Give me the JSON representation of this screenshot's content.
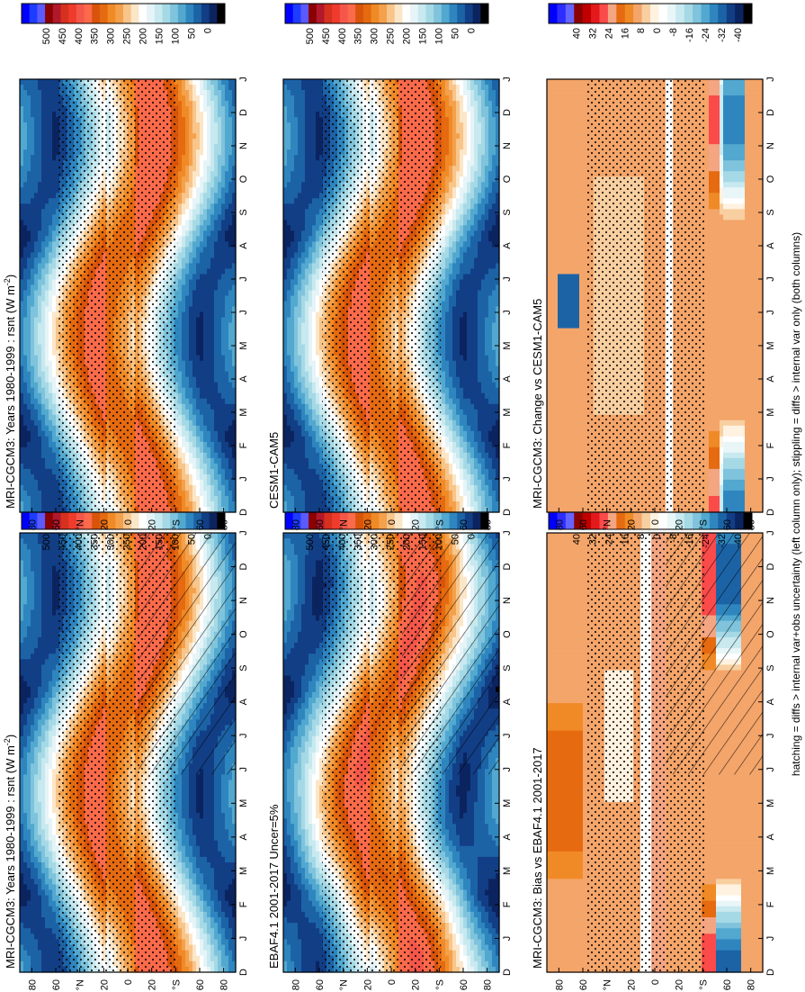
{
  "figure": {
    "caption": "hatching = diffs > internal var+obs uncertainty (left column only); stippling = diffs > internal var only (both columns)"
  },
  "chart_data": [
    {
      "type": "heatmap",
      "panel": "top-left",
      "title": "MRI-CGCM3: Years 1980-1999 : rsnt (W m",
      "title_superscript": "-2",
      "title_suffix": ")",
      "x_tick_labels": [
        "D",
        "J",
        "F",
        "M",
        "A",
        "M",
        "J",
        "J",
        "A",
        "S",
        "O",
        "N",
        "D",
        "J"
      ],
      "y_tick_labels": [
        "80",
        "60",
        "°N",
        "20",
        "0",
        "20",
        "°S",
        "60",
        "80"
      ],
      "y_ticks": [
        80,
        60,
        40,
        20,
        0,
        -20,
        -40,
        -60,
        -80
      ],
      "ylim": [
        -90,
        90
      ],
      "colorbar": {
        "labels": [
          "500",
          "450",
          "400",
          "350",
          "300",
          "250",
          "200",
          "150",
          "100",
          "50",
          "0"
        ],
        "levels": [
          520,
          500,
          480,
          460,
          440,
          420,
          400,
          380,
          360,
          340,
          320,
          300,
          280,
          260,
          240,
          220,
          200,
          180,
          160,
          140,
          120,
          100,
          80,
          60,
          40,
          20,
          0
        ]
      },
      "field": "abs",
      "hatching": true,
      "stippling": true
    },
    {
      "type": "heatmap",
      "panel": "top-right",
      "title": "MRI-CGCM3: Years 1980-1999 : rsnt (W m",
      "title_superscript": "-2",
      "title_suffix": ")",
      "x_tick_labels": [
        "D",
        "J",
        "F",
        "M",
        "A",
        "M",
        "J",
        "J",
        "A",
        "S",
        "O",
        "N",
        "D",
        "J"
      ],
      "y_tick_labels": [
        "80",
        "60",
        "°N",
        "20",
        "0",
        "20",
        "°S",
        "60",
        "80"
      ],
      "y_ticks": [
        80,
        60,
        40,
        20,
        0,
        -20,
        -40,
        -60,
        -80
      ],
      "ylim": [
        -90,
        90
      ],
      "colorbar": {
        "labels": [
          "500",
          "450",
          "400",
          "350",
          "300",
          "250",
          "200",
          "150",
          "100",
          "50",
          "0"
        ],
        "levels": [
          520,
          500,
          480,
          460,
          440,
          420,
          400,
          380,
          360,
          340,
          320,
          300,
          280,
          260,
          240,
          220,
          200,
          180,
          160,
          140,
          120,
          100,
          80,
          60,
          40,
          20,
          0
        ]
      },
      "field": "abs",
      "hatching": false,
      "stippling": true
    },
    {
      "type": "heatmap",
      "panel": "middle-left",
      "title": "EBAF4.1 2001-2017 Uncer=5%",
      "title_superscript": "",
      "title_suffix": "",
      "x_tick_labels": [
        "D",
        "J",
        "F",
        "M",
        "A",
        "M",
        "J",
        "J",
        "A",
        "S",
        "O",
        "N",
        "D",
        "J"
      ],
      "y_tick_labels": [
        "80",
        "60",
        "°N",
        "20",
        "0",
        "20",
        "°S",
        "60",
        "80"
      ],
      "y_ticks": [
        80,
        60,
        40,
        20,
        0,
        -20,
        -40,
        -60,
        -80
      ],
      "ylim": [
        -90,
        90
      ],
      "colorbar": {
        "labels": [
          "500",
          "450",
          "400",
          "350",
          "300",
          "250",
          "200",
          "150",
          "100",
          "50",
          "0"
        ],
        "levels": [
          520,
          500,
          480,
          460,
          440,
          420,
          400,
          380,
          360,
          340,
          320,
          300,
          280,
          260,
          240,
          220,
          200,
          180,
          160,
          140,
          120,
          100,
          80,
          60,
          40,
          20,
          0
        ]
      },
      "field": "obs",
      "hatching": true,
      "stippling": true
    },
    {
      "type": "heatmap",
      "panel": "middle-right",
      "title": "CESM1-CAM5",
      "title_superscript": "",
      "title_suffix": "",
      "x_tick_labels": [
        "D",
        "J",
        "F",
        "M",
        "A",
        "M",
        "J",
        "J",
        "A",
        "S",
        "O",
        "N",
        "D",
        "J"
      ],
      "y_tick_labels": [
        "80",
        "60",
        "°N",
        "20",
        "0",
        "20",
        "°S",
        "60",
        "80"
      ],
      "y_ticks": [
        80,
        60,
        40,
        20,
        0,
        -20,
        -40,
        -60,
        -80
      ],
      "ylim": [
        -90,
        90
      ],
      "colorbar": {
        "labels": [
          "500",
          "450",
          "400",
          "350",
          "300",
          "250",
          "200",
          "150",
          "100",
          "50",
          "0"
        ],
        "levels": [
          520,
          500,
          480,
          460,
          440,
          420,
          400,
          380,
          360,
          340,
          320,
          300,
          280,
          260,
          240,
          220,
          200,
          180,
          160,
          140,
          120,
          100,
          80,
          60,
          40,
          20,
          0
        ]
      },
      "field": "abs",
      "hatching": false,
      "stippling": true
    },
    {
      "type": "heatmap",
      "panel": "bottom-left",
      "title": "MRI-CGCM3: Bias vs EBAF4.1 2001-2017",
      "title_superscript": "",
      "title_suffix": "",
      "x_tick_labels": [
        "D",
        "J",
        "F",
        "M",
        "A",
        "M",
        "J",
        "J",
        "A",
        "S",
        "O",
        "N",
        "D",
        "J"
      ],
      "y_tick_labels": [
        "80",
        "60",
        "°N",
        "20",
        "0",
        "20",
        "°S",
        "60",
        "80"
      ],
      "y_ticks": [
        80,
        60,
        40,
        20,
        0,
        -20,
        -40,
        -60,
        -80
      ],
      "ylim": [
        -90,
        90
      ],
      "colorbar": {
        "labels": [
          "40",
          "32",
          "24",
          "16",
          "8",
          "0",
          "-8",
          "-16",
          "-24",
          "-32",
          "-40"
        ],
        "levels": [
          48,
          44,
          40,
          36,
          32,
          28,
          24,
          20,
          16,
          12,
          8,
          4,
          0,
          -4,
          -8,
          -12,
          -16,
          -20,
          -24,
          -28,
          -32,
          -36,
          -40,
          -44,
          -48
        ]
      },
      "field": "bias",
      "hatching": true,
      "stippling": true
    },
    {
      "type": "heatmap",
      "panel": "bottom-right",
      "title": "MRI-CGCM3: Change vs CESM1-CAM5",
      "title_superscript": "",
      "title_suffix": "",
      "x_tick_labels": [
        "D",
        "J",
        "F",
        "M",
        "A",
        "M",
        "J",
        "J",
        "A",
        "S",
        "O",
        "N",
        "D",
        "J"
      ],
      "y_tick_labels": [
        "80",
        "60",
        "°N",
        "20",
        "0",
        "20",
        "°S",
        "60",
        "80"
      ],
      "y_ticks": [
        80,
        60,
        40,
        20,
        0,
        -20,
        -40,
        -60,
        -80
      ],
      "ylim": [
        -90,
        90
      ],
      "colorbar": {
        "labels": [
          "40",
          "32",
          "24",
          "16",
          "8",
          "0",
          "-8",
          "-16",
          "-24",
          "-32",
          "-40"
        ],
        "levels": [
          48,
          44,
          40,
          36,
          32,
          28,
          24,
          20,
          16,
          12,
          8,
          4,
          0,
          -4,
          -8,
          -12,
          -16,
          -20,
          -24,
          -28,
          -32,
          -36,
          -40,
          -44,
          -48
        ]
      },
      "field": "change",
      "hatching": false,
      "stippling": true
    }
  ],
  "palettes": {
    "abs": [
      "#0000ff",
      "#1e3cff",
      "#5a5aff",
      "#8b0000",
      "#b2182b",
      "#d6301f",
      "#ef3b2c",
      "#f4574a",
      "#fb6a4a",
      "#d9540b",
      "#e56a10",
      "#f08a26",
      "#f4a14d",
      "#f8c58a",
      "#fce6c8",
      "#ffffff",
      "#e6f4f7",
      "#c7e9ef",
      "#a6d9e6",
      "#7fc3dc",
      "#52a8cf",
      "#2f86bf",
      "#1c63a6",
      "#123e85",
      "#0b2460",
      "#000000"
    ],
    "diff": [
      "#0000ff",
      "#2d2dff",
      "#6464ff",
      "#8b0000",
      "#c00000",
      "#e31a1c",
      "#fb4a4a",
      "#f4a582",
      "#e56a10",
      "#f08a26",
      "#f4a56a",
      "#f8cfa0",
      "#fff2e0",
      "#ffffff",
      "#e8f6f8",
      "#c7e9ef",
      "#a6d9e6",
      "#7fc3dc",
      "#52a8cf",
      "#2f86bf",
      "#1c63a6",
      "#123e85",
      "#0b2460",
      "#000000"
    ]
  }
}
